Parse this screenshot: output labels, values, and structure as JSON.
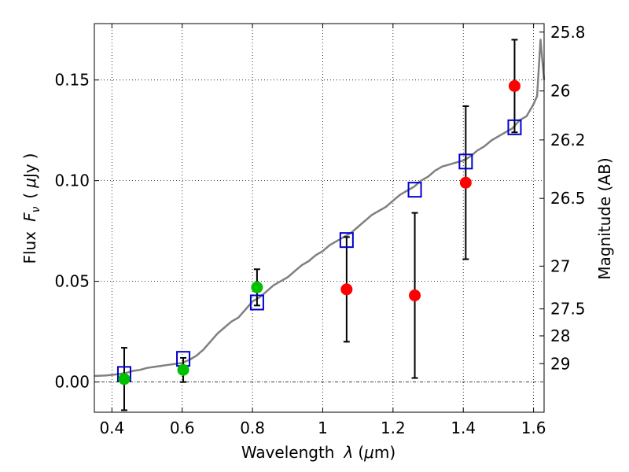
{
  "chart_data": {
    "type": "scatter",
    "xlabel_text": "Wavelength",
    "xlabel_symbol": "λ",
    "xlabel_unit_open": "(",
    "xlabel_unit_mu": "μ",
    "xlabel_unit_rest": "m)",
    "ylabel_text": "Flux",
    "ylabel_symbol_F": "F",
    "ylabel_symbol_nu": "ν",
    "ylabel_unit_open": "(",
    "ylabel_unit_mu": "μ",
    "ylabel_unit_rest": "Jy",
    "ylabel_unit_close": ")",
    "y2label": "Magnitude (AB)",
    "xlim": [
      0.35,
      1.63
    ],
    "ylim": [
      -0.015,
      0.178
    ],
    "grid": true,
    "x_ticks": [
      {
        "value": 0.4,
        "label": "0.4"
      },
      {
        "value": 0.6,
        "label": "0.6"
      },
      {
        "value": 0.8,
        "label": "0.8"
      },
      {
        "value": 1.0,
        "label": "1"
      },
      {
        "value": 1.2,
        "label": "1.2"
      },
      {
        "value": 1.4,
        "label": "1.4"
      },
      {
        "value": 1.6,
        "label": "1.6"
      }
    ],
    "y_ticks": [
      {
        "value": 0.0,
        "label": "0.00"
      },
      {
        "value": 0.05,
        "label": "0.05"
      },
      {
        "value": 0.1,
        "label": "0.10"
      },
      {
        "value": 0.15,
        "label": "0.15"
      }
    ],
    "mag_ticks": [
      {
        "value": 25.8,
        "label": "25.8"
      },
      {
        "value": 26.0,
        "label": "26"
      },
      {
        "value": 26.2,
        "label": "26.2"
      },
      {
        "value": 26.5,
        "label": "26.5"
      },
      {
        "value": 27.0,
        "label": "27"
      },
      {
        "value": 27.5,
        "label": "27.5"
      },
      {
        "value": 28.0,
        "label": "28"
      },
      {
        "value": 29.0,
        "label": "29"
      }
    ],
    "spectrum": {
      "color": "#808080",
      "x": [
        0.35,
        0.38,
        0.4,
        0.42,
        0.44,
        0.46,
        0.48,
        0.5,
        0.52,
        0.54,
        0.56,
        0.58,
        0.6,
        0.62,
        0.64,
        0.66,
        0.68,
        0.7,
        0.72,
        0.74,
        0.76,
        0.78,
        0.8,
        0.82,
        0.84,
        0.86,
        0.88,
        0.9,
        0.92,
        0.94,
        0.96,
        0.98,
        1.0,
        1.02,
        1.04,
        1.06,
        1.08,
        1.1,
        1.12,
        1.14,
        1.16,
        1.18,
        1.2,
        1.22,
        1.24,
        1.26,
        1.28,
        1.3,
        1.32,
        1.34,
        1.36,
        1.38,
        1.4,
        1.42,
        1.44,
        1.46,
        1.48,
        1.5,
        1.52,
        1.54,
        1.56,
        1.58,
        1.6,
        1.61,
        1.62,
        1.63
      ],
      "y": [
        0.003,
        0.0032,
        0.0035,
        0.004,
        0.0045,
        0.0055,
        0.006,
        0.007,
        0.0075,
        0.008,
        0.0085,
        0.009,
        0.0095,
        0.011,
        0.013,
        0.016,
        0.02,
        0.024,
        0.027,
        0.03,
        0.032,
        0.036,
        0.04,
        0.042,
        0.045,
        0.048,
        0.05,
        0.052,
        0.055,
        0.058,
        0.06,
        0.063,
        0.065,
        0.068,
        0.07,
        0.072,
        0.074,
        0.077,
        0.08,
        0.083,
        0.085,
        0.087,
        0.09,
        0.093,
        0.095,
        0.097,
        0.1,
        0.102,
        0.105,
        0.107,
        0.108,
        0.109,
        0.11,
        0.112,
        0.115,
        0.117,
        0.12,
        0.122,
        0.124,
        0.126,
        0.13,
        0.132,
        0.138,
        0.142,
        0.17,
        0.15
      ]
    },
    "green_points": {
      "color": "#00c000",
      "x": [
        0.435,
        0.603,
        0.813
      ],
      "y": [
        0.0015,
        0.006,
        0.047
      ],
      "yerr_low": [
        0.0155,
        0.006,
        0.009
      ],
      "yerr_high": [
        0.0155,
        0.006,
        0.009
      ]
    },
    "red_points": {
      "color": "#ff0000",
      "x": [
        1.068,
        1.262,
        1.407,
        1.546
      ],
      "y": [
        0.046,
        0.043,
        0.099,
        0.147
      ],
      "yerr_low": [
        0.026,
        0.041,
        0.038,
        0.023
      ],
      "yerr_high": [
        0.026,
        0.041,
        0.038,
        0.023
      ]
    },
    "blue_squares": {
      "color": "#0000cc",
      "x": [
        0.435,
        0.603,
        0.813,
        1.068,
        1.262,
        1.407,
        1.546
      ],
      "y": [
        0.004,
        0.0115,
        0.0395,
        0.0705,
        0.0955,
        0.1095,
        0.1265
      ]
    }
  }
}
